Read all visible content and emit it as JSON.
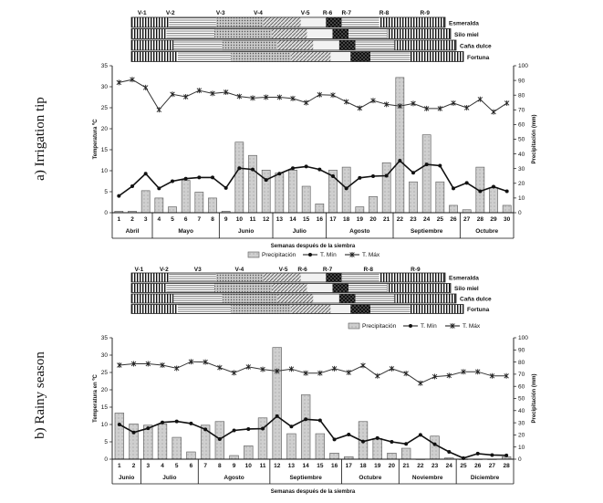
{
  "chart_data": [
    {
      "type": "bar",
      "title": "",
      "side_label": "a) Irrigation tip",
      "xlabel": "Semanas después de la siembra",
      "ylabel_left": "Temperatura ºC",
      "ylabel_right": "Precipitación (mm)",
      "ylim_left": [
        0,
        35
      ],
      "ylim_right": [
        0,
        100
      ],
      "left_ticks": [
        "0",
        "5",
        "10",
        "15",
        "20",
        "25",
        "30",
        "35"
      ],
      "right_ticks": [
        "0",
        "10",
        "20",
        "30",
        "40",
        "50",
        "60",
        "70",
        "80",
        "90",
        "100"
      ],
      "weeks": [
        "1",
        "2",
        "3",
        "4",
        "5",
        "6",
        "7",
        "8",
        "9",
        "10",
        "11",
        "12",
        "13",
        "14",
        "15",
        "16",
        "17",
        "18",
        "19",
        "20",
        "21",
        "22",
        "23",
        "24",
        "25",
        "26",
        "27",
        "28",
        "29",
        "30"
      ],
      "months": [
        {
          "label": "Abril",
          "start": 1,
          "end": 3
        },
        {
          "label": "Mayo",
          "start": 4,
          "end": 8
        },
        {
          "label": "Junio",
          "start": 9,
          "end": 12
        },
        {
          "label": "Julio",
          "start": 13,
          "end": 16
        },
        {
          "label": "Agosto",
          "start": 17,
          "end": 21
        },
        {
          "label": "Septiembre",
          "start": 22,
          "end": 26
        },
        {
          "label": "Octubre",
          "start": 27,
          "end": 30
        }
      ],
      "legend": [
        "Precipitación",
        "T. Mín",
        "T. Máx"
      ],
      "series": [
        {
          "name": "Precipitación",
          "axis": "right",
          "kind": "bar",
          "values": [
            1,
            1,
            15,
            10,
            4,
            22,
            14,
            10,
            1,
            48,
            39,
            29,
            27,
            29,
            18,
            6,
            29,
            31,
            4,
            11,
            34,
            92,
            21,
            53,
            21,
            5,
            2,
            31,
            17,
            5
          ]
        },
        {
          "name": "T. Mín",
          "axis": "left",
          "kind": "line",
          "values": [
            4,
            6.3,
            9.3,
            5.8,
            7.5,
            8.1,
            8.4,
            8.4,
            5.9,
            10.6,
            10.3,
            7.8,
            9.3,
            10.6,
            11,
            10.3,
            8.7,
            5.8,
            8.3,
            8.7,
            8.8,
            12.4,
            9.5,
            11.5,
            11.2,
            5.8,
            7.1,
            5.1,
            6.2,
            5.1
          ]
        },
        {
          "name": "T. Máx",
          "axis": "left",
          "kind": "line",
          "values": [
            31,
            31.7,
            29.8,
            24.5,
            28.2,
            27.6,
            29.1,
            28.4,
            28.7,
            27.7,
            27.3,
            27.5,
            27.5,
            27.2,
            26.2,
            28.1,
            28,
            26.4,
            24.9,
            26.7,
            25.8,
            25.4,
            26,
            24.8,
            24.8,
            26.1,
            25,
            27,
            24,
            26.1
          ]
        }
      ],
      "stages": {
        "labels": [
          "V-1",
          "V-2",
          "V-3",
          "V-4",
          "V-5",
          "R-6",
          "R-7",
          "R-8",
          "R-9"
        ],
        "varieties": [
          "Esmeralda",
          "Silo miel",
          "Caña dulce",
          "Fortuna"
        ]
      }
    },
    {
      "type": "bar",
      "title": "",
      "side_label": "b) Rainy season",
      "xlabel": "Semanas después de la siembra",
      "ylabel_left": "Temperatura en ºC",
      "ylabel_right": "Precipitación (mm)",
      "ylim_left": [
        0,
        35
      ],
      "ylim_right": [
        0,
        100
      ],
      "left_ticks": [
        "0",
        "5",
        "10",
        "15",
        "20",
        "25",
        "30",
        "35"
      ],
      "right_ticks": [
        "0",
        "10",
        "20",
        "30",
        "40",
        "50",
        "60",
        "70",
        "80",
        "90",
        "100"
      ],
      "weeks": [
        "1",
        "2",
        "3",
        "4",
        "5",
        "6",
        "7",
        "8",
        "9",
        "10",
        "11",
        "12",
        "13",
        "14",
        "15",
        "16",
        "17",
        "18",
        "19",
        "20",
        "21",
        "22",
        "23",
        "24",
        "25",
        "26",
        "27",
        "28"
      ],
      "months": [
        {
          "label": "Junio",
          "start": 1,
          "end": 2
        },
        {
          "label": "Julio",
          "start": 3,
          "end": 6
        },
        {
          "label": "Agosto",
          "start": 7,
          "end": 11
        },
        {
          "label": "Septiembre",
          "start": 12,
          "end": 16
        },
        {
          "label": "Octubre",
          "start": 17,
          "end": 20
        },
        {
          "label": "Noviembre",
          "start": 21,
          "end": 24
        },
        {
          "label": "Diciembre",
          "start": 25,
          "end": 28
        }
      ],
      "legend": [
        "Precipitación",
        "T. Mín",
        "T. Máx"
      ],
      "series": [
        {
          "name": "Precipitación",
          "axis": "right",
          "kind": "bar",
          "values": [
            38,
            29,
            28,
            29,
            18,
            6,
            28,
            31,
            3,
            11,
            34,
            92,
            21,
            53,
            21,
            5,
            2,
            31,
            17,
            5,
            9,
            0,
            19,
            1,
            0,
            0,
            0,
            2
          ]
        },
        {
          "name": "T. Mín",
          "axis": "left",
          "kind": "line",
          "values": [
            10,
            7.7,
            8.9,
            10.6,
            10.9,
            10.3,
            8.6,
            5.8,
            8.3,
            8.7,
            8.8,
            12.4,
            9.4,
            11.5,
            11.2,
            5.7,
            7.1,
            5.1,
            6.1,
            5,
            4.4,
            7,
            4.3,
            2.1,
            0.3,
            1.6,
            1.2,
            1.1
          ]
        },
        {
          "name": "T. Máx",
          "axis": "left",
          "kind": "line",
          "values": [
            27.1,
            27.5,
            27.5,
            27.1,
            26.2,
            28.1,
            28,
            26.4,
            24.9,
            26.6,
            25.9,
            25.4,
            26,
            24.8,
            24.8,
            26.1,
            25,
            27,
            24,
            26.1,
            24.7,
            21.9,
            23.8,
            24.1,
            25.2,
            25.2,
            24,
            24
          ]
        }
      ],
      "stages": {
        "labels": [
          "V-1",
          "V-2",
          "V3",
          "V-4",
          "V-5",
          "R-6",
          "R-7",
          "R-8",
          "R-9"
        ],
        "varieties": [
          "Esmeralda",
          "Silo miel",
          "Caña dulce",
          "Fortuna"
        ]
      }
    }
  ]
}
